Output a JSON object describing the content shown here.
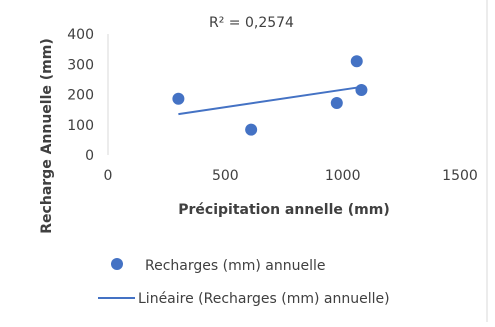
{
  "chart_data": {
    "type": "scatter",
    "title": "",
    "xlabel": "Précipitation annelle (mm)",
    "ylabel": "Recharge Annuelle (mm)",
    "xlim": [
      0,
      1500
    ],
    "ylim": [
      0,
      400
    ],
    "x_ticks": [
      "0",
      "500",
      "1000",
      "1500"
    ],
    "y_ticks": [
      "0",
      "100",
      "200",
      "300",
      "400"
    ],
    "x_tick_values": [
      0,
      500,
      1000,
      1500
    ],
    "y_tick_values": [
      0,
      100,
      200,
      300,
      400
    ],
    "grid": false,
    "legend_position": "bottom",
    "series": [
      {
        "name": "Recharges (mm) annuelle",
        "color": "#4472c4",
        "points": [
          {
            "x": 300,
            "y": 186
          },
          {
            "x": 610,
            "y": 84
          },
          {
            "x": 975,
            "y": 172
          },
          {
            "x": 1060,
            "y": 310
          },
          {
            "x": 1080,
            "y": 215
          }
        ]
      }
    ],
    "trendline": {
      "name": "Linéaire (Recharges (mm) annuelle)",
      "color": "#4472c4",
      "x_start": 300,
      "y_start": 135,
      "x_end": 1080,
      "y_end": 225
    },
    "annotation": "R² = 0,2574"
  }
}
